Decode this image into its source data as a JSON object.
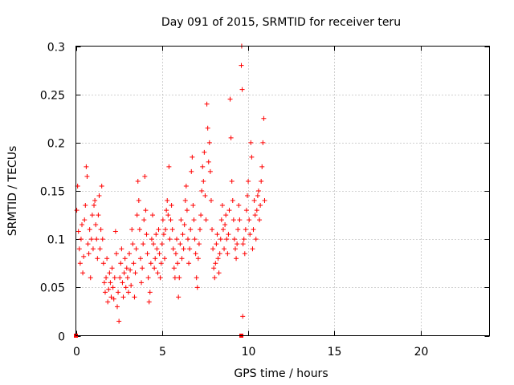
{
  "chart_data": {
    "type": "scatter",
    "title": "Day 091 of 2015, SRMTID for receiver teru",
    "xlabel": "GPS time / hours",
    "ylabel": "SRMTID / TECUs",
    "xlim": [
      0,
      24
    ],
    "ylim": [
      0,
      0.3
    ],
    "xticks": [
      0,
      5,
      10,
      15,
      20
    ],
    "xtick_labels": [
      "0",
      "5",
      "10",
      "15",
      "20"
    ],
    "yticks": [
      0,
      0.05,
      0.1,
      0.15,
      0.2,
      0.25,
      0.3
    ],
    "ytick_labels": [
      "0",
      "0.05",
      "0.1",
      "0.15",
      "0.2",
      "0.25",
      "0.3"
    ],
    "grid": true,
    "marker": "+",
    "color": "#ff0000",
    "series": [
      {
        "name": "SRMTID",
        "points": [
          [
            0.05,
            0.13
          ],
          [
            0.1,
            0.155
          ],
          [
            0.15,
            0.108
          ],
          [
            0.2,
            0.09
          ],
          [
            0.25,
            0.075
          ],
          [
            0.3,
            0.1
          ],
          [
            0.35,
            0.115
          ],
          [
            0.4,
            0.065
          ],
          [
            0.45,
            0.082
          ],
          [
            0.5,
            0.12
          ],
          [
            0.55,
            0.135
          ],
          [
            0.6,
            0.175
          ],
          [
            0.65,
            0.165
          ],
          [
            0.7,
            0.095
          ],
          [
            0.75,
            0.085
          ],
          [
            0.8,
            0.11
          ],
          [
            0.85,
            0.06
          ],
          [
            0.9,
            0.1
          ],
          [
            0.95,
            0.125
          ],
          [
            1.0,
            0.09
          ],
          [
            1.05,
            0.135
          ],
          [
            1.1,
            0.14
          ],
          [
            1.15,
            0.115
          ],
          [
            1.2,
            0.1
          ],
          [
            1.25,
            0.08
          ],
          [
            1.3,
            0.125
          ],
          [
            1.35,
            0.145
          ],
          [
            1.4,
            0.09
          ],
          [
            1.45,
            0.11
          ],
          [
            1.5,
            0.155
          ],
          [
            1.55,
            0.1
          ],
          [
            1.6,
            0.075
          ],
          [
            1.65,
            0.055
          ],
          [
            1.7,
            0.045
          ],
          [
            1.75,
            0.06
          ],
          [
            1.8,
            0.08
          ],
          [
            1.85,
            0.035
          ],
          [
            1.9,
            0.048
          ],
          [
            1.95,
            0.065
          ],
          [
            2.0,
            0.055
          ],
          [
            2.05,
            0.04
          ],
          [
            2.1,
            0.07
          ],
          [
            2.15,
            0.05
          ],
          [
            2.2,
            0.038
          ],
          [
            2.25,
            0.06
          ],
          [
            2.3,
            0.108
          ],
          [
            2.35,
            0.085
          ],
          [
            2.4,
            0.03
          ],
          [
            2.45,
            0.045
          ],
          [
            2.5,
            0.015
          ],
          [
            2.55,
            0.06
          ],
          [
            2.6,
            0.075
          ],
          [
            2.65,
            0.09
          ],
          [
            2.7,
            0.055
          ],
          [
            2.75,
            0.04
          ],
          [
            2.8,
            0.065
          ],
          [
            2.85,
            0.08
          ],
          [
            2.9,
            0.05
          ],
          [
            2.95,
            0.07
          ],
          [
            3.0,
            0.06
          ],
          [
            3.05,
            0.045
          ],
          [
            3.1,
            0.085
          ],
          [
            3.15,
            0.068
          ],
          [
            3.2,
            0.052
          ],
          [
            3.25,
            0.11
          ],
          [
            3.3,
            0.095
          ],
          [
            3.35,
            0.075
          ],
          [
            3.4,
            0.04
          ],
          [
            3.45,
            0.065
          ],
          [
            3.5,
            0.09
          ],
          [
            3.55,
            0.125
          ],
          [
            3.6,
            0.16
          ],
          [
            3.65,
            0.14
          ],
          [
            3.7,
            0.11
          ],
          [
            3.75,
            0.08
          ],
          [
            3.8,
            0.055
          ],
          [
            3.85,
            0.07
          ],
          [
            3.9,
            0.095
          ],
          [
            3.95,
            0.12
          ],
          [
            4.0,
            0.165
          ],
          [
            4.05,
            0.13
          ],
          [
            4.1,
            0.105
          ],
          [
            4.15,
            0.085
          ],
          [
            4.2,
            0.06
          ],
          [
            4.25,
            0.035
          ],
          [
            4.3,
            0.045
          ],
          [
            4.35,
            0.075
          ],
          [
            4.4,
            0.1
          ],
          [
            4.45,
            0.125
          ],
          [
            4.5,
            0.095
          ],
          [
            4.55,
            0.07
          ],
          [
            4.6,
            0.08
          ],
          [
            4.65,
            0.105
          ],
          [
            4.7,
            0.09
          ],
          [
            4.75,
            0.065
          ],
          [
            4.8,
            0.11
          ],
          [
            4.85,
            0.085
          ],
          [
            4.9,
            0.06
          ],
          [
            4.95,
            0.075
          ],
          [
            5.0,
            0.095
          ],
          [
            5.05,
            0.12
          ],
          [
            5.1,
            0.105
          ],
          [
            5.15,
            0.08
          ],
          [
            5.2,
            0.11
          ],
          [
            5.25,
            0.13
          ],
          [
            5.3,
            0.14
          ],
          [
            5.35,
            0.125
          ],
          [
            5.4,
            0.175
          ],
          [
            5.45,
            0.1
          ],
          [
            5.5,
            0.12
          ],
          [
            5.55,
            0.135
          ],
          [
            5.6,
            0.11
          ],
          [
            5.65,
            0.09
          ],
          [
            5.7,
            0.07
          ],
          [
            5.75,
            0.06
          ],
          [
            5.8,
            0.085
          ],
          [
            5.85,
            0.1
          ],
          [
            5.9,
            0.075
          ],
          [
            5.95,
            0.04
          ],
          [
            6.0,
            0.06
          ],
          [
            6.05,
            0.095
          ],
          [
            6.1,
            0.12
          ],
          [
            6.15,
            0.08
          ],
          [
            6.2,
            0.105
          ],
          [
            6.25,
            0.09
          ],
          [
            6.3,
            0.115
          ],
          [
            6.35,
            0.14
          ],
          [
            6.4,
            0.155
          ],
          [
            6.45,
            0.13
          ],
          [
            6.5,
            0.1
          ],
          [
            6.55,
            0.075
          ],
          [
            6.6,
            0.09
          ],
          [
            6.65,
            0.11
          ],
          [
            6.7,
            0.17
          ],
          [
            6.75,
            0.185
          ],
          [
            6.8,
            0.135
          ],
          [
            6.85,
            0.12
          ],
          [
            6.9,
            0.1
          ],
          [
            6.95,
            0.085
          ],
          [
            7.0,
            0.06
          ],
          [
            7.05,
            0.05
          ],
          [
            7.1,
            0.08
          ],
          [
            7.15,
            0.095
          ],
          [
            7.2,
            0.11
          ],
          [
            7.25,
            0.125
          ],
          [
            7.3,
            0.15
          ],
          [
            7.35,
            0.175
          ],
          [
            7.4,
            0.16
          ],
          [
            7.45,
            0.19
          ],
          [
            7.5,
            0.145
          ],
          [
            7.55,
            0.12
          ],
          [
            7.6,
            0.24
          ],
          [
            7.65,
            0.215
          ],
          [
            7.7,
            0.18
          ],
          [
            7.75,
            0.2
          ],
          [
            7.8,
            0.17
          ],
          [
            7.85,
            0.14
          ],
          [
            7.9,
            0.11
          ],
          [
            7.95,
            0.09
          ],
          [
            8.0,
            0.07
          ],
          [
            8.05,
            0.06
          ],
          [
            8.1,
            0.075
          ],
          [
            8.15,
            0.095
          ],
          [
            8.2,
            0.105
          ],
          [
            8.25,
            0.08
          ],
          [
            8.3,
            0.065
          ],
          [
            8.35,
            0.085
          ],
          [
            8.4,
            0.1
          ],
          [
            8.45,
            0.12
          ],
          [
            8.5,
            0.135
          ],
          [
            8.55,
            0.11
          ],
          [
            8.6,
            0.09
          ],
          [
            8.65,
            0.115
          ],
          [
            8.7,
            0.125
          ],
          [
            8.75,
            0.1
          ],
          [
            8.8,
            0.085
          ],
          [
            8.85,
            0.105
          ],
          [
            8.9,
            0.13
          ],
          [
            8.95,
            0.245
          ],
          [
            9.0,
            0.205
          ],
          [
            9.05,
            0.16
          ],
          [
            9.1,
            0.14
          ],
          [
            9.15,
            0.12
          ],
          [
            9.2,
            0.1
          ],
          [
            9.25,
            0.09
          ],
          [
            9.3,
            0.08
          ],
          [
            9.35,
            0.095
          ],
          [
            9.4,
            0.11
          ],
          [
            9.45,
            0.135
          ],
          [
            9.5,
            0.12
          ],
          [
            9.6,
            0.28
          ],
          [
            9.62,
            0.3
          ],
          [
            9.65,
            0.255
          ],
          [
            9.68,
            0.02
          ],
          [
            9.7,
            0.095
          ],
          [
            9.75,
            0.1
          ],
          [
            9.8,
            0.085
          ],
          [
            9.85,
            0.11
          ],
          [
            9.9,
            0.13
          ],
          [
            9.95,
            0.145
          ],
          [
            10.0,
            0.16
          ],
          [
            10.05,
            0.12
          ],
          [
            10.1,
            0.105
          ],
          [
            10.15,
            0.2
          ],
          [
            10.2,
            0.185
          ],
          [
            10.25,
            0.09
          ],
          [
            10.3,
            0.11
          ],
          [
            10.35,
            0.14
          ],
          [
            10.4,
            0.125
          ],
          [
            10.45,
            0.1
          ],
          [
            10.5,
            0.13
          ],
          [
            10.55,
            0.145
          ],
          [
            10.6,
            0.15
          ],
          [
            10.65,
            0.12
          ],
          [
            10.7,
            0.135
          ],
          [
            10.75,
            0.16
          ],
          [
            10.8,
            0.175
          ],
          [
            10.85,
            0.2
          ],
          [
            10.9,
            0.225
          ],
          [
            10.95,
            0.14
          ]
        ]
      }
    ],
    "zero_markers": [
      [
        0.0,
        0.0
      ],
      [
        9.6,
        0.0
      ]
    ]
  }
}
